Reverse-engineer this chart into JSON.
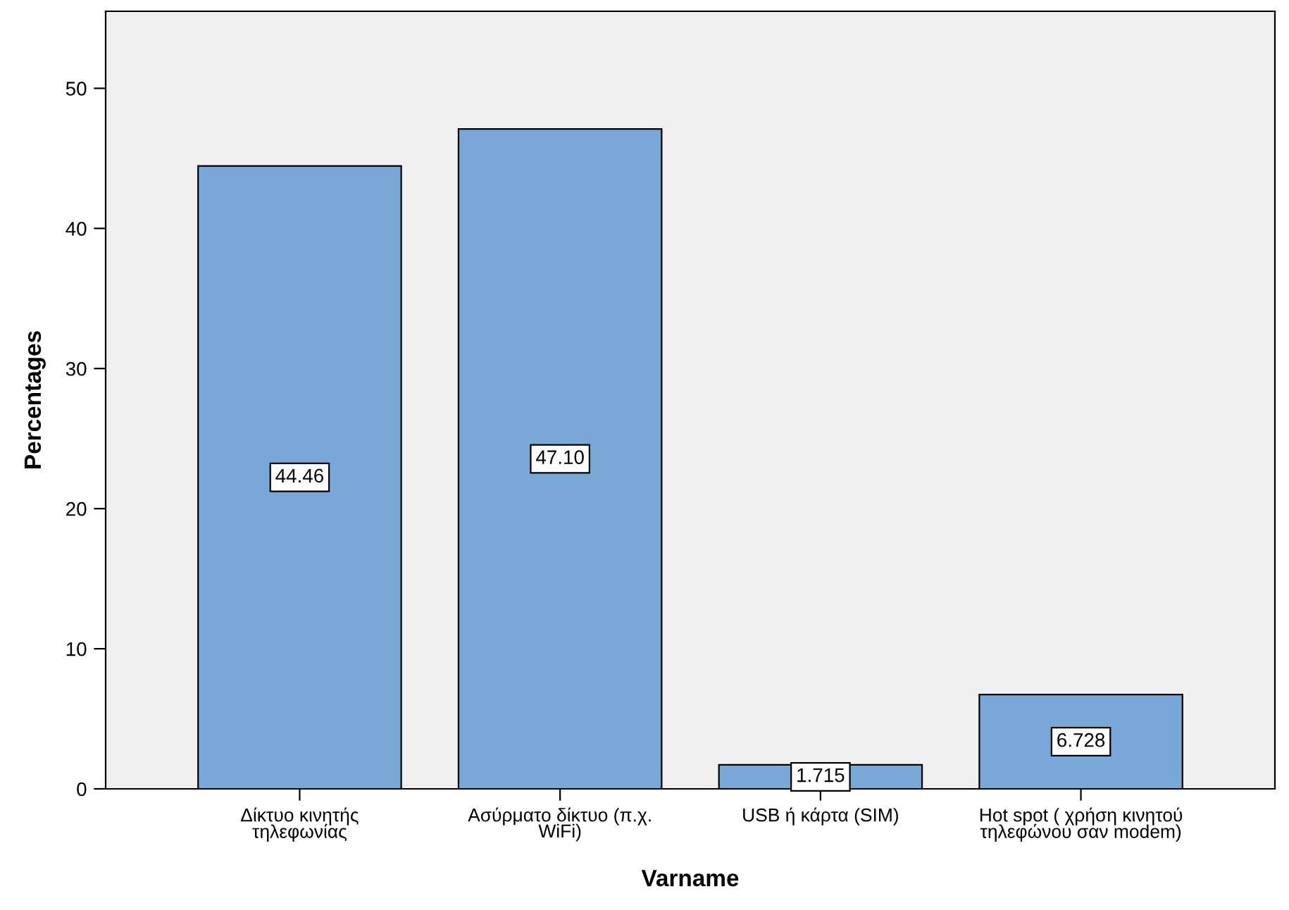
{
  "chart_data": {
    "type": "bar",
    "xlabel": "Varname",
    "ylabel": "Percentages",
    "categories": [
      "Δίκτυο κινητής τηλεφωνίας",
      "Ασύρματο δίκτυο (π.χ. WiFi)",
      "USB ή κάρτα (SIM)",
      "Hot spot ( χρήση κινητού τηλεφώνου σαν modem)"
    ],
    "values": [
      44.46,
      47.1,
      1.715,
      6.728
    ],
    "value_labels": [
      "44.46",
      "47.10",
      "1.715",
      "6.728"
    ],
    "color": "#79a8d8",
    "ylim": [
      0,
      55.5
    ],
    "yticks": [
      0,
      10,
      20,
      30,
      40,
      50
    ],
    "grid": false,
    "legend": false
  }
}
